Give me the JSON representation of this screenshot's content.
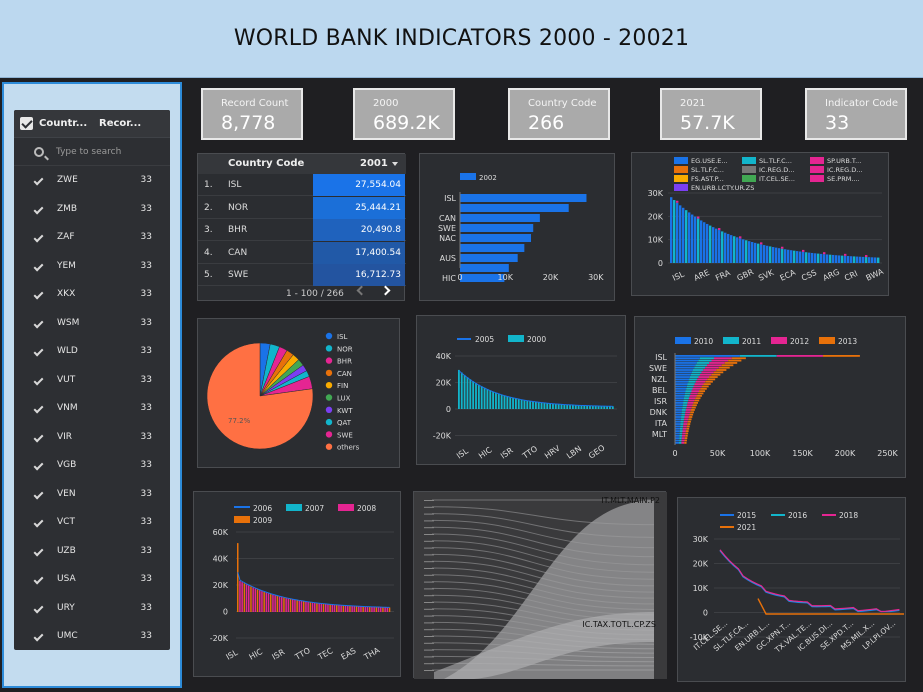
{
  "header": {
    "title": "WORLD BANK INDICATORS 2000 - 20021"
  },
  "filter": {
    "col1": "Countr...",
    "col2": "Recor...",
    "search_placeholder": "Type to search",
    "rows": [
      {
        "code": "ZWE",
        "count": "33"
      },
      {
        "code": "ZMB",
        "count": "33"
      },
      {
        "code": "ZAF",
        "count": "33"
      },
      {
        "code": "YEM",
        "count": "33"
      },
      {
        "code": "XKX",
        "count": "33"
      },
      {
        "code": "WSM",
        "count": "33"
      },
      {
        "code": "WLD",
        "count": "33"
      },
      {
        "code": "VUT",
        "count": "33"
      },
      {
        "code": "VNM",
        "count": "33"
      },
      {
        "code": "VIR",
        "count": "33"
      },
      {
        "code": "VGB",
        "count": "33"
      },
      {
        "code": "VEN",
        "count": "33"
      },
      {
        "code": "VCT",
        "count": "33"
      },
      {
        "code": "UZB",
        "count": "33"
      },
      {
        "code": "USA",
        "count": "33"
      },
      {
        "code": "URY",
        "count": "33"
      },
      {
        "code": "UMC",
        "count": "33"
      }
    ]
  },
  "kpis": [
    {
      "label": "Record Count",
      "value": "8,778"
    },
    {
      "label": "2000",
      "value": "689.2K"
    },
    {
      "label": "Country Code",
      "value": "266"
    },
    {
      "label": "2021",
      "value": "57.7K"
    },
    {
      "label": "Indicator Code",
      "value": "33"
    }
  ],
  "table": {
    "col1": "Country Code",
    "col2": "2001",
    "rows": [
      {
        "idx": "1.",
        "code": "ISL",
        "value": "27,554.04",
        "color": "#1a73e8"
      },
      {
        "idx": "2.",
        "code": "NOR",
        "value": "25,444.21",
        "color": "#1b6fd8"
      },
      {
        "idx": "3.",
        "code": "BHR",
        "value": "20,490.8",
        "color": "#1f62bd"
      },
      {
        "idx": "4.",
        "code": "CAN",
        "value": "17,400.54",
        "color": "#2159a7"
      },
      {
        "idx": "5.",
        "code": "SWE",
        "value": "16,712.73",
        "color": "#2354a0"
      }
    ],
    "pager": "1 - 100 / 266"
  },
  "colors": {
    "blue": "#1a73e8",
    "teal": "#12b5cb",
    "pink": "#e52592",
    "orange": "#e8710a",
    "yellow": "#f9ab00",
    "green": "#41a853",
    "purple": "#7b3ff2",
    "gray": "#777777"
  },
  "chart_data": [
    {
      "type": "bar",
      "orientation": "horizontal",
      "series": [
        {
          "name": "2002",
          "values": [
            28500,
            24500,
            18000,
            16500,
            16000,
            14500,
            13000,
            11000,
            10000
          ]
        }
      ],
      "categories": [
        "ISL",
        "",
        "CAN",
        "SWE",
        "NAC",
        "",
        "AUS",
        "",
        "HIC"
      ],
      "xticks": [
        "0",
        "10K",
        "20K",
        "30K"
      ],
      "xlim": [
        0,
        32000
      ]
    },
    {
      "type": "bar",
      "legend": [
        "EG.USE.E...",
        "SL.TLF.C...",
        "SP.URB.T...",
        "SL.TLF.C...",
        "IC.REG.D...",
        "IC.REG.D...",
        "FS.AST.P...",
        "IT.CEL.SE...",
        "SE.PRM....",
        "EN.URB.LCTY.UR.ZS"
      ],
      "categories": [
        "ISL",
        "ARE",
        "FRA",
        "GBR",
        "SVK",
        "ECA",
        "CSS",
        "ARG",
        "CRI",
        "BWA"
      ],
      "yticks": [
        "0",
        "10K",
        "20K",
        "30K"
      ],
      "ylim": [
        0,
        30000
      ],
      "values": [
        27000,
        16000,
        12000,
        10000,
        9000,
        8000,
        7500,
        7000,
        6500,
        6000
      ]
    },
    {
      "type": "pie",
      "slices": [
        {
          "name": "ISL",
          "pct": 3.1
        },
        {
          "name": "NOR",
          "pct": 2.9
        },
        {
          "name": "BHR",
          "pct": 2.5
        },
        {
          "name": "CAN",
          "pct": 2.3
        },
        {
          "name": "FIN",
          "pct": 2.2
        },
        {
          "name": "LUX",
          "pct": 2.1
        },
        {
          "name": "KWT",
          "pct": 2.0
        },
        {
          "name": "QAT",
          "pct": 1.9
        },
        {
          "name": "SWE",
          "pct": 3.8
        },
        {
          "name": "others",
          "pct": 77.2
        }
      ],
      "label": "77.2%"
    },
    {
      "type": "bar",
      "series": [
        {
          "name": "2005"
        },
        {
          "name": "2000"
        }
      ],
      "categories": [
        "ISL",
        "HIC",
        "ISR",
        "TTO",
        "HRV",
        "LBN",
        "GEO"
      ],
      "yticks": [
        "40K",
        "20K",
        "0",
        "-20K"
      ],
      "ylim": [
        -20000,
        40000
      ],
      "values": [
        28000,
        12000,
        7000,
        4000,
        3000,
        2000,
        1500
      ]
    },
    {
      "type": "bar",
      "orientation": "horizontal",
      "series": [
        {
          "name": "2010"
        },
        {
          "name": "2011"
        },
        {
          "name": "2012"
        },
        {
          "name": "2013"
        }
      ],
      "categories": [
        "ISL",
        "SWE",
        "NZL",
        "BEL",
        "ISR",
        "DNK",
        "ITA",
        "MLT"
      ],
      "xticks": [
        "0",
        "50K",
        "100K",
        "150K",
        "200K",
        "250K"
      ],
      "xlim": [
        0,
        250000
      ],
      "values": [
        215000,
        90000,
        60000,
        45000,
        35000,
        28000,
        22000,
        18000
      ]
    },
    {
      "type": "bar",
      "series": [
        {
          "name": "2006"
        },
        {
          "name": "2007"
        },
        {
          "name": "2008"
        },
        {
          "name": "2009"
        }
      ],
      "categories": [
        "ISL",
        "HIC",
        "ISR",
        "TTO",
        "TEC",
        "EAS",
        "THA"
      ],
      "yticks": [
        "60K",
        "40K",
        "20K",
        "0",
        "-20K"
      ],
      "ylim": [
        -20000,
        60000
      ],
      "values": [
        52000,
        15000,
        10000,
        6000,
        4000,
        3000,
        2000
      ]
    },
    {
      "type": "area",
      "labels": [
        "IT.MLT.MAIN.P2",
        "IC.TAX.TOTL.CP.ZS"
      ]
    },
    {
      "type": "line",
      "series": [
        {
          "name": "2015"
        },
        {
          "name": "2016"
        },
        {
          "name": "2018"
        },
        {
          "name": "2021"
        }
      ],
      "categories": [
        "IT.CEL.SE...",
        "SL.TLF.CA...",
        "EN.URB.L...",
        "GC.XPN.T...",
        "TX.VAL.TE...",
        "IC.BUS.DI...",
        "SE.XPD.T...",
        "MS.MIL.X...",
        "LP.LPI.OV..."
      ],
      "yticks": [
        "30K",
        "20K",
        "10K",
        "0",
        "-10K"
      ],
      "ylim": [
        -10000,
        30000
      ]
    }
  ]
}
